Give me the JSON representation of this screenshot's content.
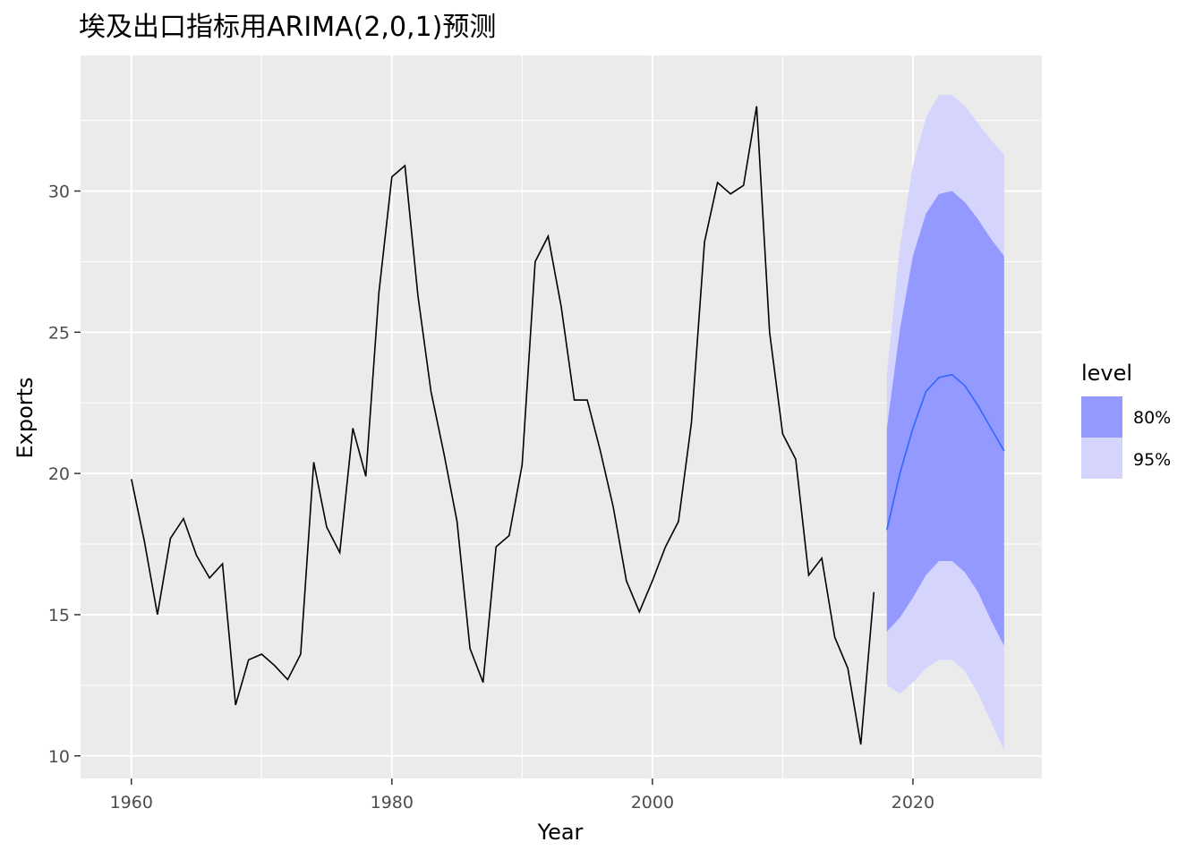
{
  "chart_data": {
    "type": "line",
    "title": "埃及出口指标用ARIMA(2,0,1)预测",
    "xlabel": "Year",
    "ylabel": "Exports",
    "xlim": [
      1956.1,
      2029.9
    ],
    "ylim": [
      9.2,
      34.8
    ],
    "x_ticks": [
      1960,
      1980,
      2000,
      2020
    ],
    "y_ticks": [
      10,
      15,
      20,
      25,
      30
    ],
    "grid": true,
    "legend": {
      "title": "level",
      "position": "right",
      "entries": [
        "80%",
        "95%"
      ]
    },
    "colors": {
      "panel": "#ebebeb",
      "grid": "#ffffff",
      "line": "#000000",
      "forecast": "#3366ff",
      "band80": "#9399fe",
      "band95": "#d4d4fd"
    },
    "series": [
      {
        "x": [
          1960,
          1961,
          1962,
          1963,
          1964,
          1965,
          1966,
          1967,
          1968,
          1969,
          1970,
          1971,
          1972,
          1973,
          1974,
          1975,
          1976,
          1977,
          1978,
          1979,
          1980,
          1981,
          1982,
          1983,
          1984,
          1985,
          1986,
          1987,
          1988,
          1989,
          1990,
          1991,
          1992,
          1993,
          1994,
          1995,
          1996,
          1997,
          1998,
          1999,
          2000,
          2001,
          2002,
          2003,
          2004,
          2005,
          2006,
          2007,
          2008,
          2009,
          2010,
          2011,
          2012,
          2013,
          2014,
          2015,
          2016,
          2017
        ],
        "values": [
          19.8,
          17.6,
          15.0,
          17.7,
          18.4,
          17.1,
          16.3,
          16.8,
          11.8,
          13.4,
          13.6,
          13.2,
          12.7,
          13.6,
          20.4,
          18.1,
          17.2,
          21.6,
          19.9,
          26.4,
          30.5,
          30.9,
          26.3,
          22.9,
          20.7,
          18.3,
          13.8,
          12.6,
          17.4,
          17.8,
          20.3,
          27.5,
          28.4,
          25.9,
          22.6,
          22.6,
          20.8,
          18.8,
          16.2,
          15.1,
          16.2,
          17.4,
          18.3,
          21.8,
          28.2,
          30.3,
          29.9,
          30.2,
          33.0,
          25.0,
          21.4,
          20.5,
          16.4,
          17.0,
          14.2,
          13.1,
          10.4,
          15.8
        ]
      },
      {
        "x": [
          2018,
          2019,
          2020,
          2021,
          2022,
          2023,
          2024,
          2025,
          2026,
          2027
        ],
        "values": [
          18.0,
          20.0,
          21.6,
          22.9,
          23.4,
          23.5,
          23.1,
          22.4,
          21.6,
          20.8
        ],
        "lo80": [
          14.4,
          14.9,
          15.6,
          16.4,
          16.9,
          16.9,
          16.5,
          15.8,
          14.8,
          13.9
        ],
        "hi80": [
          21.6,
          25.1,
          27.7,
          29.2,
          29.9,
          30.0,
          29.6,
          29.0,
          28.3,
          27.7
        ],
        "lo95": [
          12.5,
          12.2,
          12.6,
          13.1,
          13.4,
          13.4,
          13.0,
          12.2,
          11.2,
          10.2
        ],
        "hi95": [
          23.5,
          28.0,
          30.9,
          32.6,
          33.4,
          33.4,
          33.0,
          32.4,
          31.8,
          31.3
        ]
      }
    ]
  }
}
